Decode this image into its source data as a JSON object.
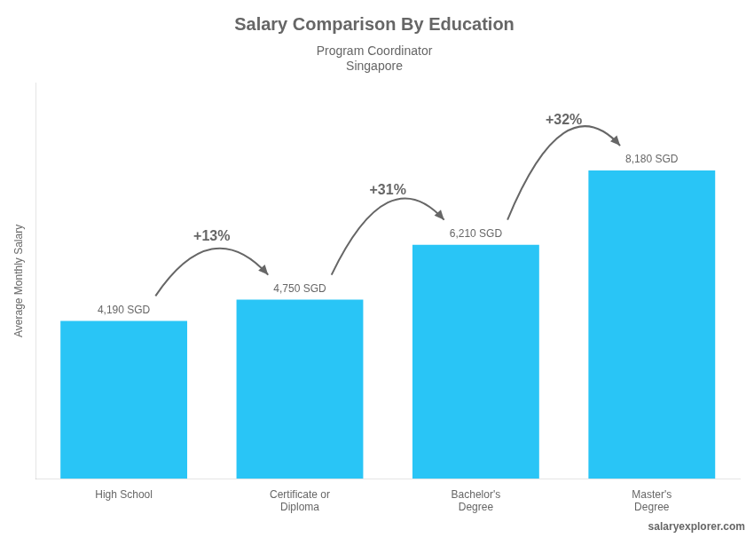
{
  "chart_data": {
    "type": "bar",
    "title": "Salary Comparison By Education",
    "subtitle": [
      "Program Coordinator",
      "Singapore"
    ],
    "ylabel": "Average Monthly Salary",
    "categories": [
      "High School",
      "Certificate or\nDiploma",
      "Bachelor's\nDegree",
      "Master's\nDegree"
    ],
    "values": [
      4190,
      4750,
      6210,
      8180
    ],
    "value_labels": [
      "4,190 SGD",
      "4,750 SGD",
      "6,210 SGD",
      "8,180 SGD"
    ],
    "data_labels": true,
    "color": "#29C5F6",
    "ylim": [
      0,
      10500
    ],
    "grid": false,
    "tick_labels": "x",
    "annotations": [
      {
        "text": "+13%",
        "from": "High School",
        "to": "Certificate or\nDiploma"
      },
      {
        "text": "+31%",
        "from": "Certificate or\nDiploma",
        "to": "Bachelor's\nDegree"
      },
      {
        "text": "+32%",
        "from": "Bachelor's\nDegree",
        "to": "Master's\nDegree"
      },
      {
        "text": "salaryexplorer.com"
      }
    ]
  }
}
